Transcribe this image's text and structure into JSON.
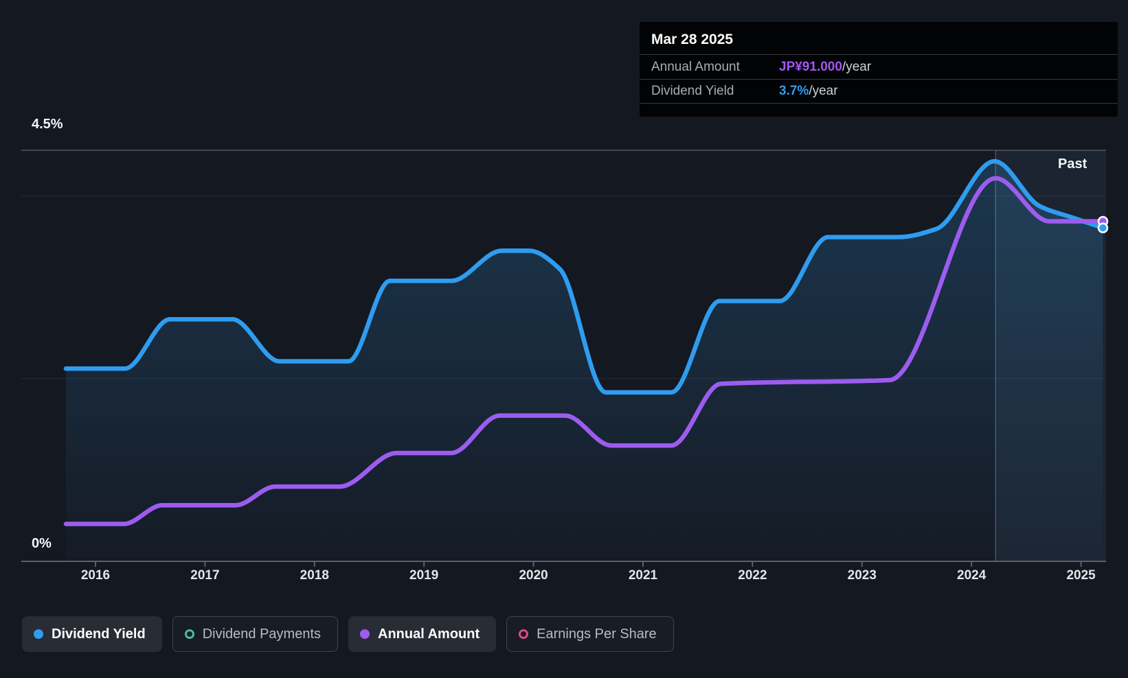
{
  "colors": {
    "background": "#141821",
    "dividend_yield_blue": "#2F9CEF",
    "annual_amount_purple": "#9D5CF0",
    "dividend_payments_teal": "#4FB8A8",
    "earnings_per_share_pink": "#E04B80"
  },
  "tooltip": {
    "date": "Mar 28 2025",
    "rows": [
      {
        "label": "Annual Amount",
        "value": "JP¥91.000",
        "suffix": "/year",
        "value_color": "#A455F2"
      },
      {
        "label": "Dividend Yield",
        "value": "3.7%",
        "suffix": "/year",
        "value_color": "#2F9CEF"
      }
    ]
  },
  "chart": {
    "y_axis": {
      "top_label": "4.5%",
      "bottom_label": "0%"
    },
    "past_label": "Past",
    "x_tick_labels": [
      "2016",
      "2017",
      "2018",
      "2019",
      "2020",
      "2021",
      "2022",
      "2023",
      "2024",
      "2025"
    ]
  },
  "legend": [
    {
      "label": "Dividend Yield",
      "color": "#2F9CEF",
      "style": "filled",
      "active": true
    },
    {
      "label": "Dividend Payments",
      "color": "#4FB8A8",
      "style": "ring",
      "active": false
    },
    {
      "label": "Annual Amount",
      "color": "#9D5CF0",
      "style": "filled",
      "active": true
    },
    {
      "label": "Earnings Per Share",
      "color": "#E04B80",
      "style": "ring",
      "active": false
    }
  ],
  "chart_data": {
    "type": "line",
    "x_range": [
      2015.73,
      2025.2
    ],
    "x_ticks": [
      2016,
      2017,
      2018,
      2019,
      2020,
      2021,
      2022,
      2023,
      2024,
      2025
    ],
    "yield_axis": {
      "min": 0,
      "max": 4.5,
      "unit": "%",
      "gridlines": [
        4.5,
        4.0,
        2.0
      ],
      "top_label": "4.5%",
      "bottom_label": "0%"
    },
    "amount_axis": {
      "min": 0,
      "max": 110,
      "unit": "JP¥/year",
      "note": "values estimated from plot; Mar 28 2025 = JP¥91.000"
    },
    "highlight_from_x": 2024.22,
    "past_label": "Past",
    "tooltip_point": {
      "date": "Mar 28 2025",
      "annual_amount": 91.0,
      "dividend_yield_pct": 3.7
    },
    "series": [
      {
        "name": "Dividend Yield",
        "unit": "%",
        "axis": "yield",
        "color": "#2F9CEF",
        "area_fill": true,
        "end_marker": true,
        "points": [
          [
            2015.73,
            2.11
          ],
          [
            2016.27,
            2.11
          ],
          [
            2016.68,
            2.65
          ],
          [
            2017.25,
            2.65
          ],
          [
            2017.68,
            2.19
          ],
          [
            2018.31,
            2.19
          ],
          [
            2018.69,
            3.07
          ],
          [
            2019.25,
            3.07
          ],
          [
            2019.71,
            3.4
          ],
          [
            2019.96,
            3.4
          ],
          [
            2020.24,
            3.2
          ],
          [
            2020.66,
            1.85
          ],
          [
            2021.26,
            1.85
          ],
          [
            2021.7,
            2.85
          ],
          [
            2022.25,
            2.85
          ],
          [
            2022.69,
            3.55
          ],
          [
            2023.33,
            3.55
          ],
          [
            2023.68,
            3.64
          ],
          [
            2024.21,
            4.38
          ],
          [
            2024.62,
            3.89
          ],
          [
            2024.93,
            3.76
          ],
          [
            2025.2,
            3.65
          ]
        ]
      },
      {
        "name": "Annual Amount",
        "unit": "JP¥",
        "axis": "amount",
        "color": "#9D5CF0",
        "area_fill": false,
        "end_marker": true,
        "points": [
          [
            2015.73,
            10
          ],
          [
            2016.26,
            10
          ],
          [
            2016.61,
            15
          ],
          [
            2017.28,
            15
          ],
          [
            2017.64,
            20
          ],
          [
            2018.23,
            20
          ],
          [
            2018.75,
            29
          ],
          [
            2019.25,
            29
          ],
          [
            2019.69,
            39
          ],
          [
            2020.29,
            39
          ],
          [
            2020.71,
            31
          ],
          [
            2021.26,
            31
          ],
          [
            2021.71,
            47.5
          ],
          [
            2023.25,
            48.5
          ],
          [
            2024.22,
            102.5
          ],
          [
            2024.71,
            91
          ],
          [
            2025.2,
            91
          ]
        ]
      }
    ]
  }
}
